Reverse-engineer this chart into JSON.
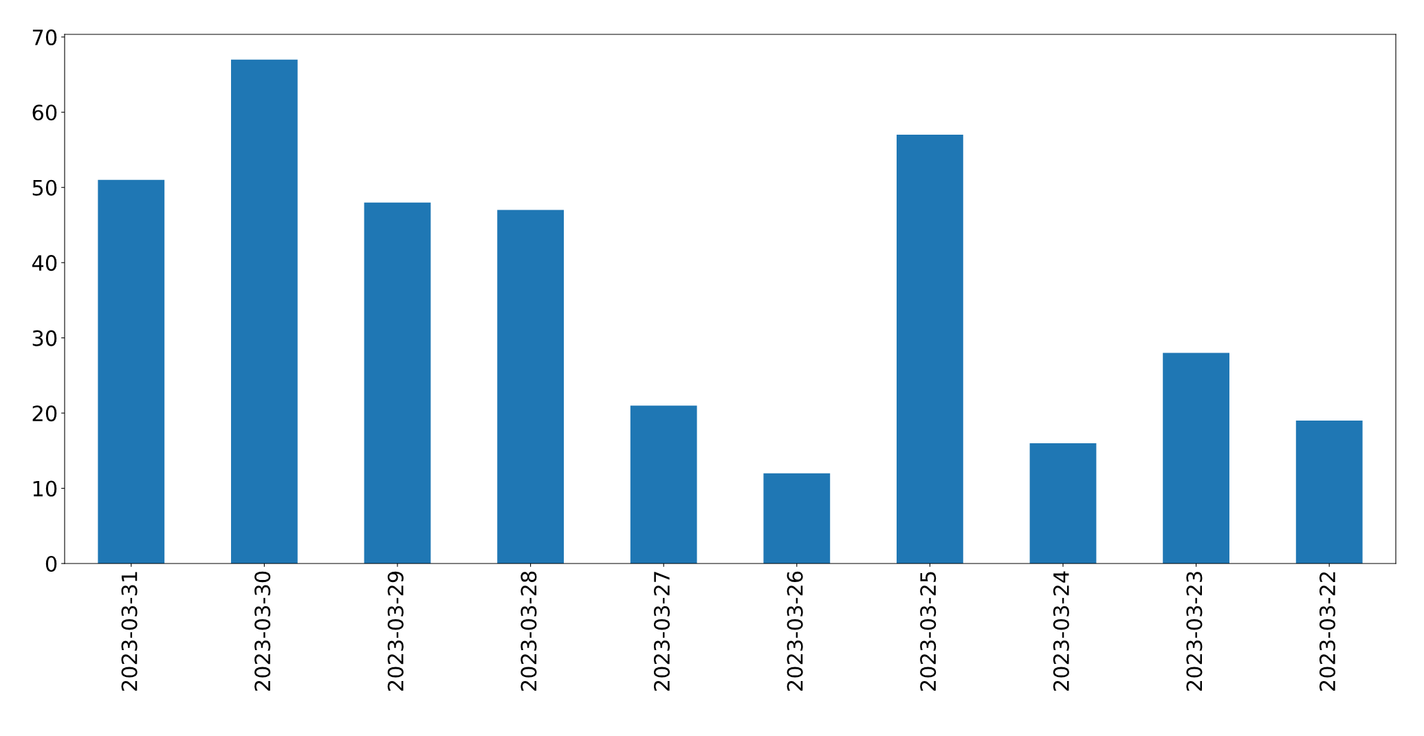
{
  "chart_data": {
    "type": "bar",
    "categories": [
      "2023-03-31",
      "2023-03-30",
      "2023-03-29",
      "2023-03-28",
      "2023-03-27",
      "2023-03-26",
      "2023-03-25",
      "2023-03-24",
      "2023-03-23",
      "2023-03-22"
    ],
    "values": [
      51,
      67,
      48,
      47,
      21,
      12,
      57,
      16,
      28,
      19
    ],
    "color": "#1f77b4",
    "ylim": [
      0,
      70.35
    ],
    "yticks": [
      0,
      10,
      20,
      30,
      40,
      50,
      60,
      70
    ],
    "grid": false
  }
}
